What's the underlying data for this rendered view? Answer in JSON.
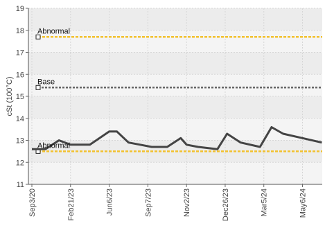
{
  "chart_data": {
    "type": "line",
    "ylabel": "cSt (100°C)",
    "ylim": [
      11,
      19
    ],
    "y_ticks": [
      "11",
      "12",
      "13",
      "14",
      "15",
      "16",
      "17",
      "18",
      "19"
    ],
    "x_ticks": [
      "Sep3/20",
      "Feb21/23",
      "Jun6/23",
      "Sep7/23",
      "Nov2/23",
      "Dec26/23",
      "Mar5/24",
      "May6/24"
    ],
    "grid": true,
    "series": [
      {
        "color": "#444444",
        "x": [
          0,
          0.35,
          0.7,
          1.0,
          1.5,
          2.0,
          2.2,
          2.5,
          2.8,
          3.1,
          3.5,
          3.85,
          4.0,
          4.3,
          4.8,
          5.05,
          5.4,
          5.9,
          6.2,
          6.5,
          7.0,
          7.5
        ],
        "values": [
          12.6,
          12.6,
          13.0,
          12.8,
          12.8,
          13.4,
          13.4,
          12.9,
          12.8,
          12.7,
          12.7,
          13.1,
          12.8,
          12.7,
          12.6,
          13.3,
          12.9,
          12.7,
          13.6,
          13.3,
          13.1,
          12.9
        ]
      }
    ],
    "reference_lines": [
      {
        "label": "Abnormal",
        "value": 17.7,
        "color": "#f2c12e"
      },
      {
        "label": "Base",
        "value": 15.4,
        "color": "#666666"
      },
      {
        "label": "Abnormal",
        "value": 12.5,
        "color": "#f2c12e"
      }
    ]
  }
}
